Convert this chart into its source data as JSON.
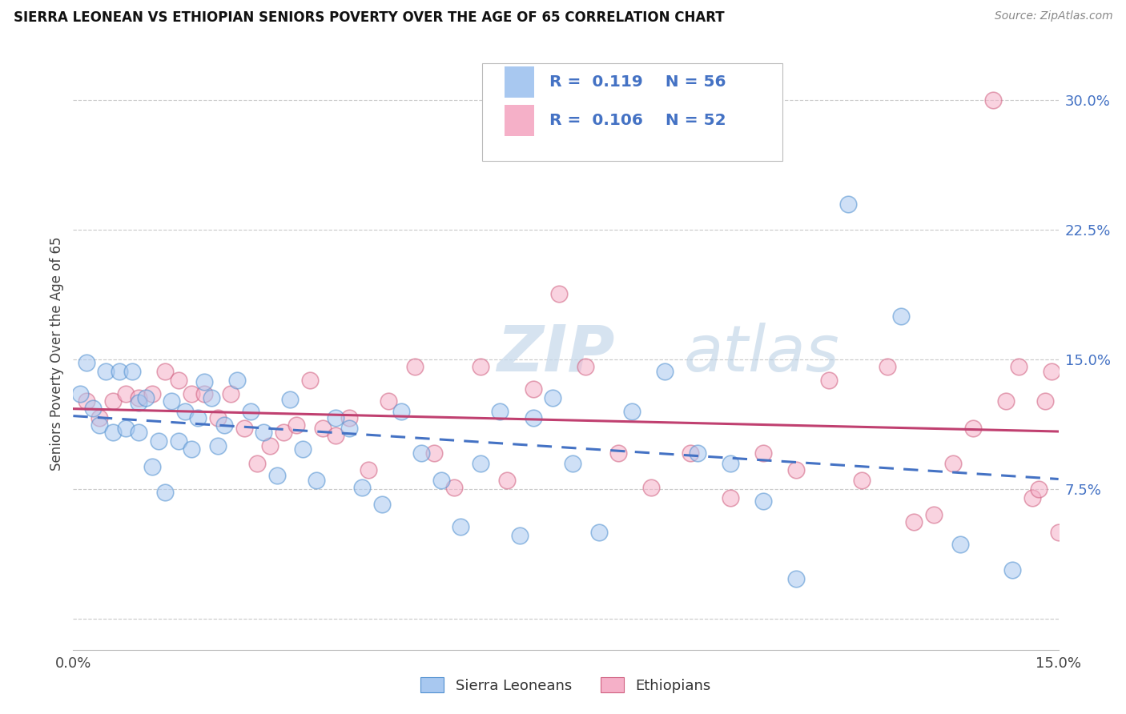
{
  "title": "SIERRA LEONEAN VS ETHIOPIAN SENIORS POVERTY OVER THE AGE OF 65 CORRELATION CHART",
  "source": "Source: ZipAtlas.com",
  "ylabel": "Seniors Poverty Over the Age of 65",
  "xlim": [
    0.0,
    0.15
  ],
  "ylim": [
    -0.018,
    0.325
  ],
  "sl_R": 0.119,
  "sl_N": 56,
  "eth_R": 0.106,
  "eth_N": 52,
  "sl_color": "#a8c8f0",
  "sl_edge": "#5090d0",
  "eth_color": "#f5b0c8",
  "eth_edge": "#d06080",
  "sl_line_color": "#4472C4",
  "eth_line_color": "#C04070",
  "background_color": "#ffffff",
  "grid_color": "#cccccc",
  "legend_color": "#4472C4",
  "yticks": [
    0.0,
    0.075,
    0.15,
    0.225,
    0.3
  ],
  "ytick_labels": [
    "",
    "7.5%",
    "15.0%",
    "22.5%",
    "30.0%"
  ],
  "sl_x": [
    0.001,
    0.002,
    0.003,
    0.004,
    0.005,
    0.006,
    0.007,
    0.008,
    0.009,
    0.01,
    0.01,
    0.011,
    0.012,
    0.013,
    0.014,
    0.015,
    0.016,
    0.017,
    0.018,
    0.019,
    0.02,
    0.021,
    0.022,
    0.023,
    0.025,
    0.027,
    0.029,
    0.031,
    0.033,
    0.035,
    0.037,
    0.04,
    0.042,
    0.044,
    0.047,
    0.05,
    0.053,
    0.056,
    0.059,
    0.062,
    0.065,
    0.068,
    0.07,
    0.073,
    0.076,
    0.08,
    0.085,
    0.09,
    0.095,
    0.1,
    0.105,
    0.11,
    0.118,
    0.126,
    0.135,
    0.143
  ],
  "sl_y": [
    0.13,
    0.148,
    0.122,
    0.112,
    0.143,
    0.108,
    0.143,
    0.11,
    0.143,
    0.125,
    0.108,
    0.128,
    0.088,
    0.103,
    0.073,
    0.126,
    0.103,
    0.12,
    0.098,
    0.116,
    0.137,
    0.128,
    0.1,
    0.112,
    0.138,
    0.12,
    0.108,
    0.083,
    0.127,
    0.098,
    0.08,
    0.116,
    0.11,
    0.076,
    0.066,
    0.12,
    0.096,
    0.08,
    0.053,
    0.09,
    0.12,
    0.048,
    0.116,
    0.128,
    0.09,
    0.05,
    0.12,
    0.143,
    0.096,
    0.09,
    0.068,
    0.023,
    0.24,
    0.175,
    0.043,
    0.028
  ],
  "eth_x": [
    0.002,
    0.004,
    0.006,
    0.008,
    0.01,
    0.012,
    0.014,
    0.016,
    0.018,
    0.02,
    0.022,
    0.024,
    0.026,
    0.028,
    0.03,
    0.032,
    0.034,
    0.036,
    0.038,
    0.04,
    0.042,
    0.045,
    0.048,
    0.052,
    0.055,
    0.058,
    0.062,
    0.066,
    0.07,
    0.074,
    0.078,
    0.083,
    0.088,
    0.094,
    0.1,
    0.105,
    0.11,
    0.115,
    0.12,
    0.124,
    0.128,
    0.131,
    0.134,
    0.137,
    0.14,
    0.142,
    0.144,
    0.146,
    0.147,
    0.148,
    0.149,
    0.15
  ],
  "eth_y": [
    0.126,
    0.116,
    0.126,
    0.13,
    0.128,
    0.13,
    0.143,
    0.138,
    0.13,
    0.13,
    0.116,
    0.13,
    0.11,
    0.09,
    0.1,
    0.108,
    0.112,
    0.138,
    0.11,
    0.106,
    0.116,
    0.086,
    0.126,
    0.146,
    0.096,
    0.076,
    0.146,
    0.08,
    0.133,
    0.188,
    0.146,
    0.096,
    0.076,
    0.096,
    0.07,
    0.096,
    0.086,
    0.138,
    0.08,
    0.146,
    0.056,
    0.06,
    0.09,
    0.11,
    0.3,
    0.126,
    0.146,
    0.07,
    0.075,
    0.126,
    0.143,
    0.05
  ]
}
